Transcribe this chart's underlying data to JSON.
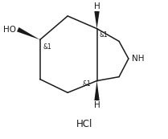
{
  "background_color": "#ffffff",
  "figsize": [
    2.09,
    1.73
  ],
  "dpi": 100,
  "HCl_label": "HCl",
  "HO_label": "HO",
  "NH_label": "NH",
  "H_top_label": "H",
  "H_bot_label": "H",
  "stereo_labels": [
    "&1",
    "&1",
    "&1"
  ],
  "line_color": "#1a1a1a",
  "text_color": "#1a1a1a",
  "font_size_atoms": 7.5,
  "font_size_stereo": 5.5,
  "font_size_HCl": 8.5,
  "line_width": 1.1
}
